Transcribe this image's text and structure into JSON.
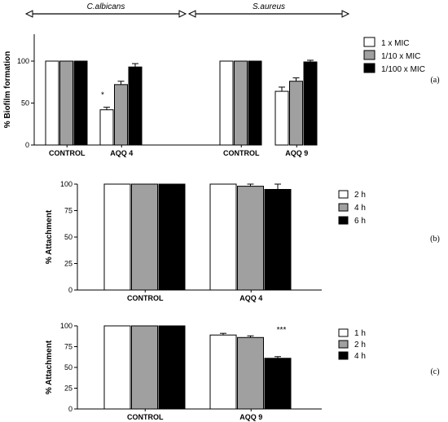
{
  "charts": [
    {
      "type": "bar",
      "panel_label": "(a)",
      "ylabel": "% Biofilm formation",
      "ylim": [
        0,
        120
      ],
      "yticks": [
        0,
        50,
        100
      ],
      "groups": [
        {
          "label": "CONTROL",
          "values": [
            100,
            100,
            100
          ],
          "errors": [
            0,
            0,
            0
          ]
        },
        {
          "label": "AQQ 4",
          "values": [
            42,
            72,
            93
          ],
          "errors": [
            3,
            4,
            4
          ]
        },
        {
          "label": "CONTROL",
          "values": [
            100,
            100,
            100
          ],
          "errors": [
            0,
            0,
            0
          ]
        },
        {
          "label": "AQQ 9",
          "values": [
            64,
            76,
            99
          ],
          "errors": [
            5,
            4,
            2
          ]
        }
      ],
      "series": [
        {
          "name": "1 x MIC",
          "color": "#ffffff"
        },
        {
          "name": "1/10 x MIC",
          "color": "#a0a0a0"
        },
        {
          "name": "1/100 x MIC",
          "color": "#000000"
        }
      ],
      "annotations": [
        {
          "text": "*",
          "group": 1,
          "series": 0
        }
      ],
      "organisms": [
        "C.albicans",
        "S.aureus"
      ]
    },
    {
      "type": "bar",
      "panel_label": "(b)",
      "ylabel": "% Attachment",
      "ylim": [
        0,
        100
      ],
      "yticks": [
        0,
        25,
        50,
        75,
        100
      ],
      "groups": [
        {
          "label": "CONTROL",
          "values": [
            100,
            100,
            100
          ],
          "errors": [
            0,
            0,
            0
          ]
        },
        {
          "label": "AQQ 4",
          "values": [
            100,
            98,
            95
          ],
          "errors": [
            0,
            2,
            5
          ]
        }
      ],
      "series": [
        {
          "name": "2 h",
          "color": "#ffffff"
        },
        {
          "name": "4 h",
          "color": "#a0a0a0"
        },
        {
          "name": "6 h",
          "color": "#000000"
        }
      ],
      "annotations": []
    },
    {
      "type": "bar",
      "panel_label": "(c)",
      "ylabel": "% Attachment",
      "ylim": [
        0,
        100
      ],
      "yticks": [
        0,
        25,
        50,
        75,
        100
      ],
      "groups": [
        {
          "label": "CONTROL",
          "values": [
            100,
            100,
            100
          ],
          "errors": [
            0,
            0,
            0
          ]
        },
        {
          "label": "AQQ 9",
          "values": [
            89,
            86,
            61
          ],
          "errors": [
            2,
            2,
            2
          ]
        }
      ],
      "series": [
        {
          "name": "1 h",
          "color": "#ffffff"
        },
        {
          "name": "2 h",
          "color": "#a0a0a0"
        },
        {
          "name": "4 h",
          "color": "#000000"
        }
      ],
      "annotations": [
        {
          "text": "***",
          "group": 1,
          "series": 1
        }
      ]
    }
  ]
}
